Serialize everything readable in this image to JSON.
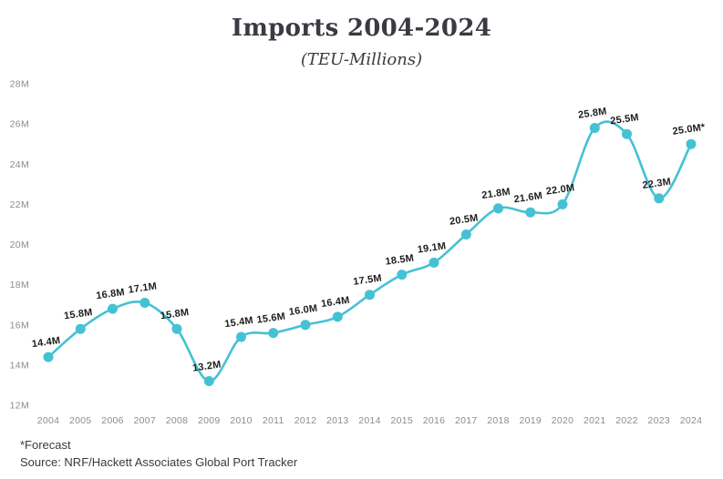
{
  "header": {
    "title": "Imports 2004-2024",
    "subtitle": "(TEU-Millions)"
  },
  "chart_data": {
    "type": "line",
    "title": "Imports 2004-2024",
    "subtitle": "(TEU-Millions)",
    "categories": [
      "2004",
      "2005",
      "2006",
      "2007",
      "2008",
      "2009",
      "2010",
      "2011",
      "2012",
      "2013",
      "2014",
      "2015",
      "2016",
      "2017",
      "2018",
      "2019",
      "2020",
      "2021",
      "2022",
      "2023",
      "2024"
    ],
    "series": [
      {
        "name": "Imports (TEU-Millions)",
        "values": [
          14.4,
          15.8,
          16.8,
          17.1,
          15.8,
          13.2,
          15.4,
          15.6,
          16.0,
          16.4,
          17.5,
          18.5,
          19.1,
          20.5,
          21.8,
          21.6,
          22.0,
          25.8,
          25.5,
          22.3,
          25.0
        ],
        "point_labels": [
          "14.4M",
          "15.8M",
          "16.8M",
          "17.1M",
          "15.8M",
          "13.2M",
          "15.4M",
          "15.6M",
          "16.0M",
          "16.4M",
          "17.5M",
          "18.5M",
          "19.1M",
          "20.5M",
          "21.8M",
          "21.6M",
          "22.0M",
          "25.8M",
          "25.5M",
          "22.3M",
          "25.0M*"
        ]
      }
    ],
    "forecast_note": "2024 value is a forecast (asterisk)",
    "ylim": [
      12,
      28
    ],
    "ytick_step": 2,
    "ytick_labels": [
      "12M",
      "14M",
      "16M",
      "18M",
      "20M",
      "22M",
      "24M",
      "26M",
      "28M"
    ],
    "xlabel": "",
    "ylabel": "",
    "grid": false,
    "legend_position": "none",
    "line_color": "#45c1d4",
    "marker_color": "#45c1d4",
    "point_label_color": "#1d1d1d",
    "axis_text_color": "#8c8c8c",
    "smooth": true
  },
  "footer": {
    "forecast_note": "*Forecast",
    "source": "Source: NRF/Hackett Associates Global Port Tracker"
  },
  "colors": {
    "accent_teal": "#45c1d4",
    "title_text": "#3a3a42",
    "axis_text": "#8c8c8c",
    "point_label_text": "#1d1d1d",
    "footer_text": "#3b3b3b",
    "background": "#ffffff"
  }
}
